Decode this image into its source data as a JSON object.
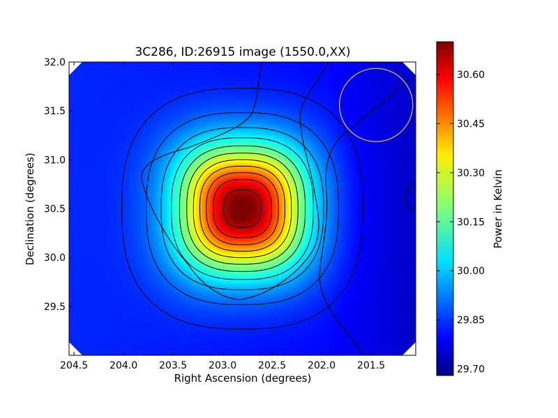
{
  "chart_data": {
    "type": "heatmap",
    "title": "3C286, ID:26915 image (1550.0,XX)",
    "xlabel": "Right Ascension (degrees)",
    "ylabel": "Declination (degrees)",
    "xlim": [
      204.55,
      201.05
    ],
    "ylim": [
      29.0,
      32.0
    ],
    "x_ticks": [
      204.5,
      204.0,
      203.5,
      203.0,
      202.5,
      202.0,
      201.5
    ],
    "x_tick_labels": [
      "204.5",
      "204.0",
      "203.5",
      "203.0",
      "202.5",
      "202.0",
      "201.5"
    ],
    "y_ticks": [
      29.5,
      30.0,
      30.5,
      31.0,
      31.5,
      32.0
    ],
    "y_tick_labels": [
      "29.5",
      "30.0",
      "30.5",
      "31.0",
      "31.5",
      "32.0"
    ],
    "colormap": "jet",
    "colorbar": {
      "label": "Power in Kelvin",
      "range": [
        29.68,
        30.7
      ],
      "ticks": [
        29.7,
        29.85,
        30.0,
        30.15,
        30.3,
        30.45,
        30.6
      ],
      "tick_labels": [
        "29.70",
        "29.85",
        "30.00",
        "30.15",
        "30.30",
        "30.45",
        "30.60"
      ]
    },
    "peak": {
      "ra": 202.8,
      "dec": 30.5,
      "value": 30.7
    },
    "background_value": 29.8,
    "contour_levels": [
      29.82,
      29.88,
      29.96,
      30.04,
      30.12,
      30.2,
      30.28,
      30.36,
      30.44,
      30.52,
      30.62
    ],
    "beam": {
      "ra": 201.45,
      "dec": 31.56,
      "radius_deg": 0.37,
      "color": "#c8b44a"
    },
    "grid": false,
    "colors": {
      "axis": "#000000",
      "contour": "#000000",
      "background": "#ffffff"
    }
  }
}
